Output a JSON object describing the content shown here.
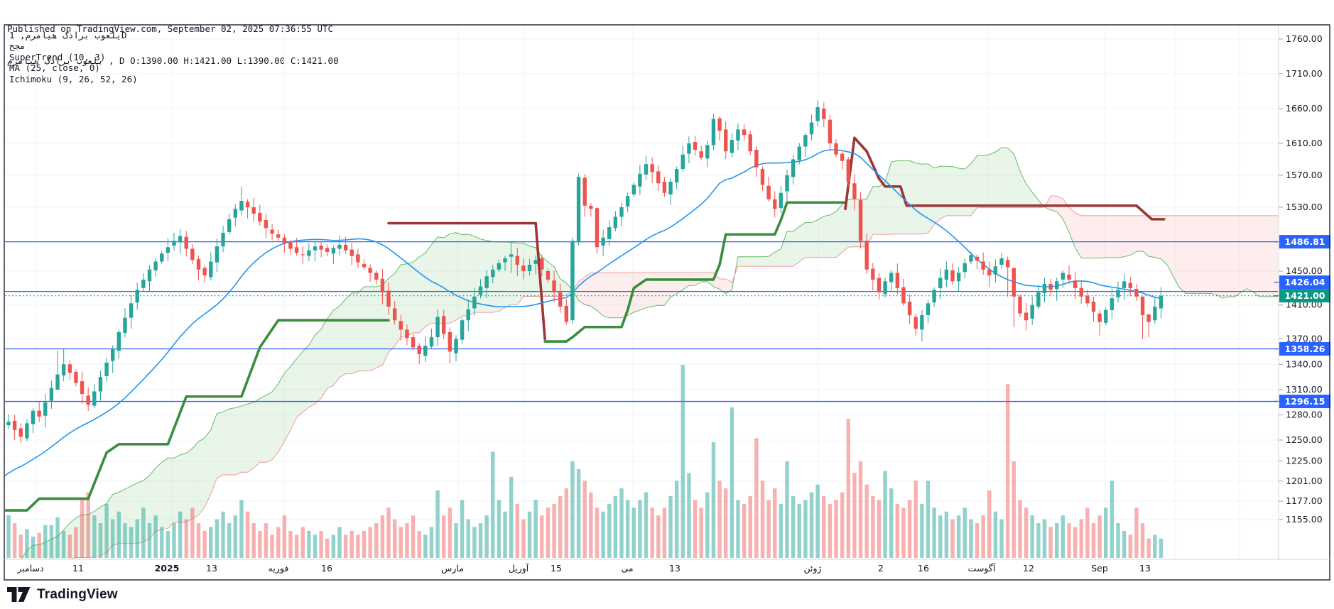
{
  "header": {
    "line1": "Published on TradingView.com, September 02, 2025 07:36:55 UTC",
    "line2_symbol": "یلعوب براذگ هیامرم",
    "line2_rest": " , D O:1390.00 H:1421.00 L:1390.00 C:1421.00"
  },
  "legend": {
    "lines": [
      "یلعوب براذگ هیامرم, 1D",
      "مجح",
      "SuperTrend (10, 3)",
      "MA (25, close, 0)",
      "Ichimoku (9, 26, 52, 26)"
    ]
  },
  "footer": {
    "brand": "TradingView"
  },
  "y_axis": {
    "price_labels": [
      {
        "text": "1486.81",
        "price": 1486.81,
        "bg": "#2962ff",
        "dy": 0
      },
      {
        "text": "1426.04",
        "price": 1426.04,
        "bg": "#2962ff",
        "dy": -13
      },
      {
        "text": "1421.00",
        "price": 1421.0,
        "bg": "#089981",
        "dy": 0
      },
      {
        "text": "1358.26",
        "price": 1358.26,
        "bg": "#2962ff",
        "dy": 0
      },
      {
        "text": "1296.15",
        "price": 1296.15,
        "bg": "#2962ff",
        "dy": 0
      }
    ]
  },
  "x_axis": {
    "labels": [
      [
        "دسامبر",
        43
      ],
      [
        "11",
        110
      ],
      [
        "2025",
        235
      ],
      [
        "13",
        298
      ],
      [
        "فوریه",
        392
      ],
      [
        "16",
        460
      ],
      [
        "مارس",
        637
      ],
      [
        "آوریل",
        730
      ],
      [
        "15",
        783
      ],
      [
        "می",
        883
      ],
      [
        "13",
        950
      ],
      [
        "ژوئن",
        1144
      ],
      [
        "2",
        1240
      ],
      [
        "16",
        1300
      ],
      [
        "آگوست",
        1382
      ],
      [
        "12",
        1448
      ],
      [
        "Sep",
        1548
      ],
      [
        "13",
        1612
      ]
    ],
    "gridlines": [
      51,
      243,
      400,
      645,
      738,
      891,
      1152,
      1390,
      1556,
      1655,
      1745
    ]
  },
  "chart_data": {
    "type": "candlestick",
    "title": "یلعوب براذگ هیامرم, 1D",
    "indicators": [
      "SuperTrend (10, 3)",
      "MA (25, close, 0)",
      "Ichimoku (9, 26, 52, 26)"
    ],
    "ohlc_shown": {
      "O": 1390.0,
      "H": 1421.0,
      "L": 1390.0,
      "C": 1421.0
    },
    "current_price": 1421.0,
    "h_lines": [
      1486.81,
      1426.04,
      1358.26,
      1296.15
    ],
    "y_ticks": [
      1760,
      1710,
      1660,
      1610,
      1570,
      1530,
      1450,
      1410,
      1370,
      1340,
      1310,
      1280,
      1250,
      1225,
      1201,
      1177,
      1155
    ],
    "note": "closes/volumes estimated from pixels; opens derived as previous close",
    "closes": [
      1272,
      1262,
      1254,
      1270,
      1285,
      1278,
      1295,
      1312,
      1328,
      1340,
      1330,
      1318,
      1305,
      1292,
      1308,
      1325,
      1342,
      1358,
      1378,
      1395,
      1412,
      1428,
      1440,
      1452,
      1462,
      1472,
      1480,
      1488,
      1494,
      1478,
      1464,
      1452,
      1445,
      1462,
      1481,
      1498,
      1515,
      1528,
      1538,
      1530,
      1522,
      1512,
      1504,
      1497,
      1492,
      1485,
      1478,
      1473,
      1470,
      1476,
      1481,
      1477,
      1474,
      1479,
      1483,
      1476,
      1469,
      1461,
      1455,
      1448,
      1440,
      1425,
      1408,
      1392,
      1381,
      1371,
      1360,
      1352,
      1362,
      1372,
      1396,
      1376,
      1355,
      1370,
      1392,
      1405,
      1420,
      1432,
      1444,
      1452,
      1460,
      1466,
      1471,
      1458,
      1450,
      1458,
      1464,
      1452,
      1440,
      1425,
      1408,
      1390,
      1488,
      1568,
      1532,
      1528,
      1480,
      1492,
      1505,
      1518,
      1530,
      1544,
      1558,
      1572,
      1584,
      1574,
      1560,
      1548,
      1562,
      1578,
      1596,
      1610,
      1602,
      1592,
      1608,
      1645,
      1628,
      1600,
      1615,
      1630,
      1622,
      1600,
      1580,
      1558,
      1540,
      1528,
      1548,
      1570,
      1590,
      1606,
      1622,
      1640,
      1662,
      1645,
      1610,
      1596,
      1588,
      1562,
      1540,
      1488,
      1452,
      1440,
      1425,
      1438,
      1448,
      1430,
      1412,
      1398,
      1382,
      1398,
      1412,
      1428,
      1442,
      1452,
      1438,
      1448,
      1460,
      1470,
      1463,
      1452,
      1445,
      1456,
      1466,
      1455,
      1420,
      1400,
      1392,
      1410,
      1425,
      1435,
      1428,
      1438,
      1448,
      1440,
      1430,
      1420,
      1412,
      1402,
      1390,
      1404,
      1418,
      1428,
      1438,
      1430,
      1420,
      1398,
      1390,
      1408,
      1421
    ],
    "volumes": [
      0.22,
      0.18,
      0.12,
      0.15,
      0.11,
      0.13,
      0.17,
      0.17,
      0.21,
      0.14,
      0.12,
      0.16,
      0.3,
      0.34,
      0.22,
      0.18,
      0.28,
      0.2,
      0.24,
      0.18,
      0.16,
      0.2,
      0.26,
      0.18,
      0.22,
      0.16,
      0.14,
      0.18,
      0.24,
      0.2,
      0.26,
      0.18,
      0.14,
      0.16,
      0.2,
      0.24,
      0.18,
      0.22,
      0.3,
      0.24,
      0.18,
      0.14,
      0.18,
      0.12,
      0.16,
      0.22,
      0.14,
      0.12,
      0.16,
      0.14,
      0.12,
      0.14,
      0.1,
      0.12,
      0.16,
      0.12,
      0.14,
      0.12,
      0.14,
      0.16,
      0.18,
      0.22,
      0.26,
      0.2,
      0.16,
      0.18,
      0.22,
      0.14,
      0.12,
      0.16,
      0.35,
      0.22,
      0.26,
      0.18,
      0.3,
      0.2,
      0.16,
      0.18,
      0.22,
      0.55,
      0.3,
      0.24,
      0.42,
      0.28,
      0.2,
      0.24,
      0.3,
      0.22,
      0.26,
      0.28,
      0.32,
      0.36,
      0.5,
      0.46,
      0.4,
      0.34,
      0.26,
      0.24,
      0.28,
      0.32,
      0.36,
      0.3,
      0.26,
      0.3,
      0.34,
      0.26,
      0.22,
      0.26,
      0.32,
      0.4,
      1.0,
      0.44,
      0.3,
      0.26,
      0.34,
      0.6,
      0.4,
      0.36,
      0.78,
      0.3,
      0.28,
      0.32,
      0.62,
      0.4,
      0.3,
      0.36,
      0.28,
      0.5,
      0.32,
      0.28,
      0.3,
      0.34,
      0.38,
      0.32,
      0.28,
      0.3,
      0.34,
      0.72,
      0.44,
      0.5,
      0.38,
      0.32,
      0.3,
      0.45,
      0.36,
      0.28,
      0.26,
      0.3,
      0.4,
      0.28,
      0.4,
      0.26,
      0.22,
      0.24,
      0.2,
      0.22,
      0.26,
      0.2,
      0.18,
      0.22,
      0.35,
      0.24,
      0.2,
      0.9,
      0.5,
      0.3,
      0.26,
      0.22,
      0.18,
      0.2,
      0.16,
      0.18,
      0.22,
      0.18,
      0.16,
      0.2,
      0.26,
      0.18,
      0.22,
      0.26,
      0.4,
      0.18,
      0.14,
      0.12,
      0.26,
      0.18,
      0.1,
      0.12,
      0.1
    ],
    "pre_series": {
      "start": 1020,
      "end": 1262,
      "count": 52
    },
    "wick_overrides": {
      "8": [
        1356,
        1322
      ],
      "9": [
        1358,
        1320
      ],
      "38": [
        1556,
        1520
      ],
      "82": [
        1487,
        1448
      ],
      "92": [
        1492,
        1388
      ],
      "93": [
        1572,
        1482
      ],
      "96": [
        1530,
        1472
      ],
      "115": [
        1652,
        1602
      ],
      "132": [
        1672,
        1634
      ],
      "148": [
        1400,
        1374
      ],
      "163": [
        1468,
        1420
      ],
      "164": [
        1424,
        1384
      ],
      "178": [
        1404,
        1374
      ],
      "185": [
        1404,
        1370
      ],
      "186": [
        1396,
        1372
      ]
    },
    "supertrend_up1": [
      [
        -0.5,
        1166
      ],
      [
        3,
        1166
      ],
      [
        5,
        1180
      ],
      [
        13,
        1180
      ],
      [
        16,
        1235
      ],
      [
        18,
        1245
      ],
      [
        26,
        1245
      ],
      [
        29,
        1302
      ],
      [
        38,
        1302
      ],
      [
        41,
        1360
      ],
      [
        44,
        1392
      ],
      [
        62,
        1392
      ]
    ],
    "supertrend_down1": [
      [
        62,
        1510
      ],
      [
        86,
        1510
      ],
      [
        87.5,
        1370
      ]
    ],
    "supertrend_up2": [
      [
        87.5,
        1367
      ],
      [
        91,
        1367
      ],
      [
        92,
        1372
      ],
      [
        94,
        1384
      ],
      [
        100,
        1384
      ],
      [
        101,
        1404
      ],
      [
        102,
        1430
      ],
      [
        104,
        1440
      ],
      [
        115,
        1440
      ],
      [
        116,
        1458
      ],
      [
        117,
        1496
      ],
      [
        125,
        1496
      ],
      [
        126,
        1514
      ],
      [
        127,
        1536
      ],
      [
        136.5,
        1536
      ]
    ],
    "supertrend_down2": [
      [
        136.5,
        1528
      ],
      [
        138,
        1618
      ],
      [
        140,
        1600
      ],
      [
        142,
        1566
      ],
      [
        143,
        1556
      ],
      [
        145.5,
        1556
      ],
      [
        146.5,
        1532
      ],
      [
        184,
        1532
      ],
      [
        186.5,
        1515
      ],
      [
        188.5,
        1515
      ]
    ]
  },
  "colors": {
    "up": "#26a69a",
    "down": "#ef5350",
    "vol_up": "rgba(38,166,154,0.50)",
    "vol_down": "rgba(239,83,80,0.45)",
    "ma": "#2196f3",
    "hline": "#2962ff",
    "price_line": "#089981",
    "st_up": "#388e3c",
    "st_down": "#9c3534",
    "cloud_a_line": "#66bb6a",
    "cloud_b_line": "#ef9a9a",
    "cloud_green": "rgba(76,175,80,0.13)",
    "cloud_red": "rgba(239,83,80,0.10)",
    "grid": "#f0f3fa",
    "axis_text": "#131722",
    "frame": "#1c2030",
    "sep": "#d1d4dc",
    "label_text": "#ffffff"
  }
}
